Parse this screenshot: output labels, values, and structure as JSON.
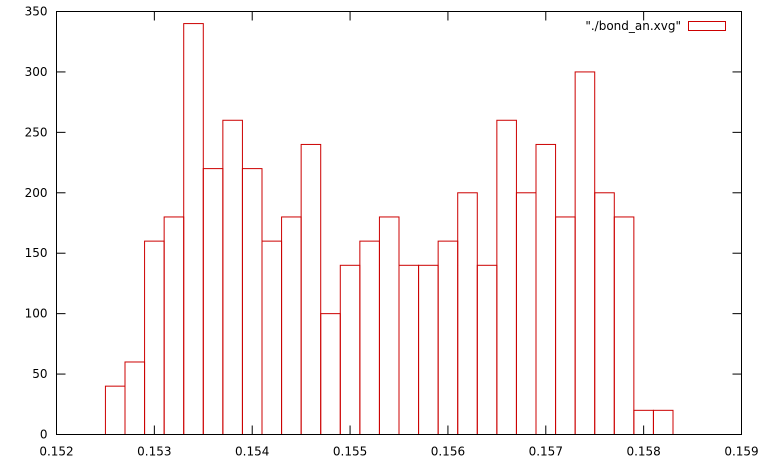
{
  "chart_data": {
    "type": "bar",
    "title": "",
    "xlabel": "",
    "ylabel": "",
    "xlim": [
      0.152,
      0.159
    ],
    "ylim": [
      0,
      350
    ],
    "xticks": [
      "0.152",
      "0.153",
      "0.154",
      "0.155",
      "0.156",
      "0.157",
      "0.158",
      "0.159"
    ],
    "yticks": [
      "0",
      "50",
      "100",
      "150",
      "200",
      "250",
      "300",
      "350"
    ],
    "grid": false,
    "legend_position": "top-right",
    "bar_style": "outline",
    "series": [
      {
        "name": "\"./bond_an.xvg\"",
        "color": "#cc0000",
        "bin_width": 0.0002,
        "x": [
          0.1526,
          0.1528,
          0.153,
          0.1532,
          0.1534,
          0.1536,
          0.1538,
          0.154,
          0.1542,
          0.1544,
          0.1546,
          0.1548,
          0.155,
          0.1552,
          0.1554,
          0.1556,
          0.1558,
          0.156,
          0.1562,
          0.1564,
          0.1566,
          0.1568,
          0.157,
          0.1572,
          0.1574,
          0.1576,
          0.1578,
          0.158,
          0.1582
        ],
        "values": [
          40,
          60,
          160,
          180,
          340,
          220,
          260,
          220,
          160,
          180,
          240,
          100,
          140,
          160,
          180,
          140,
          140,
          160,
          200,
          140,
          260,
          200,
          240,
          180,
          300,
          200,
          180,
          20,
          20
        ]
      }
    ]
  }
}
